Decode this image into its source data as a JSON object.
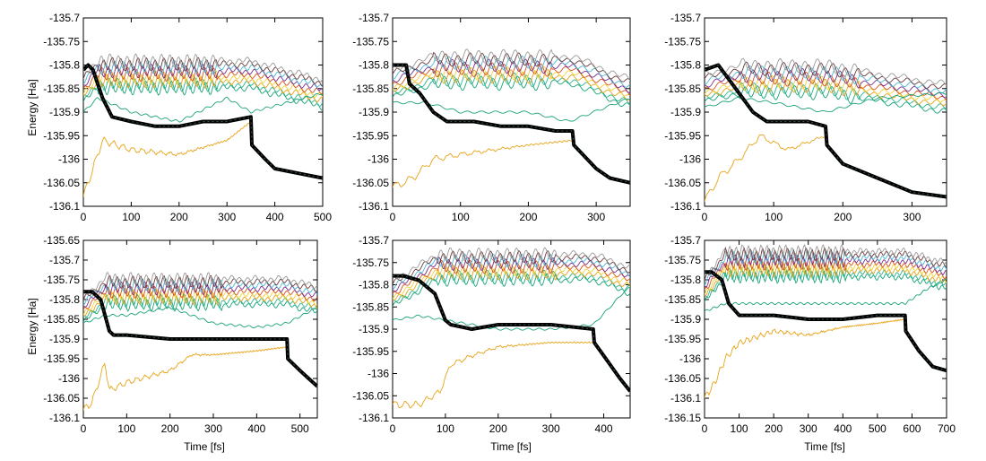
{
  "figure": {
    "ylabel": "Energy [Ha]",
    "xlabel": "Time [fs]"
  },
  "series_colors": [
    "#1aa37a",
    "#2bb58e",
    "#e8a317",
    "#f0d43a",
    "#d9531e",
    "#7b2f8f",
    "#4db8d4",
    "#6b3b3b",
    "#9a9a9a"
  ],
  "chart_data": [
    {
      "type": "line",
      "xlim": [
        0,
        500
      ],
      "ylim": [
        -136.1,
        -135.7
      ],
      "xticks": [
        "0",
        "100",
        "200",
        "300",
        "400",
        "500"
      ],
      "yticks": [
        "-136.1",
        "-136.05",
        "-136",
        "-135.95",
        "-135.9",
        "-135.85",
        "-135.8",
        "-135.75",
        "-135.7"
      ],
      "xlabel": "",
      "ylabel": "Energy [Ha]",
      "grid": false,
      "bundle_y": -135.82,
      "bundle_end_y": -135.86,
      "hop_x": 350,
      "osc_start": 30,
      "lower": {
        "x": [
          0,
          30,
          100,
          200,
          300,
          350,
          500
        ],
        "y": [
          -135.9,
          -135.87,
          -135.9,
          -135.92,
          -135.87,
          -135.9,
          -135.86
        ]
      },
      "orange": {
        "x": [
          0,
          20,
          40,
          100,
          200,
          300,
          350
        ],
        "y": [
          -136.08,
          -136.02,
          -135.96,
          -135.98,
          -135.99,
          -135.96,
          -135.92
        ]
      },
      "black": {
        "x": [
          0,
          10,
          20,
          40,
          60,
          100,
          150,
          200,
          250,
          300,
          350,
          352,
          380,
          400,
          450,
          500
        ],
        "y": [
          -135.81,
          -135.8,
          -135.81,
          -135.87,
          -135.91,
          -135.92,
          -135.93,
          -135.93,
          -135.92,
          -135.92,
          -135.91,
          -135.97,
          -136.0,
          -136.02,
          -136.03,
          -136.04
        ]
      }
    },
    {
      "type": "line",
      "xlim": [
        0,
        350
      ],
      "ylim": [
        -136.1,
        -135.7
      ],
      "xticks": [
        "0",
        "100",
        "200",
        "300"
      ],
      "yticks": [
        "-136.1",
        "-136.05",
        "-136",
        "-135.95",
        "-135.9",
        "-135.85",
        "-135.8",
        "-135.75",
        "-135.7"
      ],
      "xlabel": "",
      "ylabel": "",
      "grid": false,
      "bundle_y": -135.81,
      "bundle_end_y": -135.86,
      "hop_x": 265,
      "osc_start": 60,
      "lower": {
        "x": [
          0,
          50,
          100,
          200,
          260,
          350
        ],
        "y": [
          -135.88,
          -135.88,
          -135.9,
          -135.9,
          -135.92,
          -135.87
        ]
      },
      "orange": {
        "x": [
          0,
          30,
          60,
          100,
          150,
          200,
          265
        ],
        "y": [
          -136.06,
          -136.04,
          -136.0,
          -135.99,
          -135.98,
          -135.97,
          -135.96
        ]
      },
      "black": {
        "x": [
          0,
          20,
          25,
          40,
          60,
          80,
          120,
          160,
          200,
          240,
          265,
          267,
          300,
          320,
          350
        ],
        "y": [
          -135.8,
          -135.8,
          -135.84,
          -135.86,
          -135.9,
          -135.92,
          -135.92,
          -135.93,
          -135.93,
          -135.94,
          -135.94,
          -135.97,
          -136.02,
          -136.04,
          -136.05
        ]
      }
    },
    {
      "type": "line",
      "xlim": [
        0,
        350
      ],
      "ylim": [
        -136.1,
        -135.7
      ],
      "xticks": [
        "0",
        "100",
        "200",
        "300"
      ],
      "yticks": [
        "-136.1",
        "-136.05",
        "-136",
        "-135.95",
        "-135.9",
        "-135.85",
        "-135.8",
        "-135.75",
        "-135.7"
      ],
      "xlabel": "",
      "ylabel": "",
      "grid": false,
      "bundle_y": -135.83,
      "bundle_end_y": -135.87,
      "hop_x": 175,
      "osc_start": 50,
      "lower": {
        "x": [
          0,
          50,
          100,
          175,
          250,
          350
        ],
        "y": [
          -135.89,
          -135.87,
          -135.88,
          -135.9,
          -135.87,
          -135.86
        ]
      },
      "orange": {
        "x": [
          0,
          20,
          50,
          80,
          120,
          175
        ],
        "y": [
          -136.09,
          -136.04,
          -136.0,
          -135.95,
          -135.98,
          -135.95
        ]
      },
      "black": {
        "x": [
          0,
          20,
          30,
          50,
          70,
          90,
          120,
          150,
          175,
          177,
          200,
          250,
          300,
          350
        ],
        "y": [
          -135.81,
          -135.8,
          -135.82,
          -135.86,
          -135.9,
          -135.92,
          -135.92,
          -135.92,
          -135.93,
          -135.97,
          -136.01,
          -136.04,
          -136.07,
          -136.08
        ]
      }
    },
    {
      "type": "line",
      "xlim": [
        0,
        540
      ],
      "ylim": [
        -136.1,
        -135.65
      ],
      "xticks": [
        "0",
        "100",
        "200",
        "300",
        "400",
        "500"
      ],
      "yticks": [
        "-136.1",
        "-136.05",
        "-136",
        "-135.95",
        "-135.9",
        "-135.85",
        "-135.8",
        "-135.75",
        "-135.7",
        "-135.65"
      ],
      "xlabel": "",
      "ylabel": "Energy [Ha]",
      "grid": false,
      "bundle_y": -135.78,
      "bundle_end_y": -135.8,
      "hop_x": 470,
      "osc_start": 50,
      "lower": {
        "x": [
          0,
          50,
          100,
          200,
          300,
          400,
          470,
          540
        ],
        "y": [
          -135.86,
          -135.84,
          -135.84,
          -135.82,
          -135.86,
          -135.87,
          -135.86,
          -135.82
        ]
      },
      "orange": {
        "x": [
          0,
          20,
          50,
          60,
          100,
          200,
          250,
          300,
          400,
          470
        ],
        "y": [
          -136.08,
          -136.06,
          -135.96,
          -136.03,
          -136.01,
          -135.98,
          -135.94,
          -135.94,
          -135.93,
          -135.92
        ]
      },
      "black": {
        "x": [
          0,
          20,
          40,
          60,
          70,
          100,
          200,
          300,
          400,
          470,
          472,
          500,
          520,
          540
        ],
        "y": [
          -135.78,
          -135.78,
          -135.8,
          -135.88,
          -135.89,
          -135.89,
          -135.9,
          -135.9,
          -135.9,
          -135.9,
          -135.95,
          -135.98,
          -136.0,
          -136.02
        ]
      }
    },
    {
      "type": "line",
      "xlim": [
        0,
        450
      ],
      "ylim": [
        -136.1,
        -135.7
      ],
      "xticks": [
        "0",
        "100",
        "200",
        "300",
        "400"
      ],
      "yticks": [
        "-136.1",
        "-136.05",
        "-136",
        "-135.95",
        "-135.9",
        "-135.85",
        "-135.8",
        "-135.75",
        "-135.7"
      ],
      "xlabel": "",
      "ylabel": "",
      "grid": false,
      "bundle_y": -135.76,
      "bundle_end_y": -135.79,
      "hop_x": 380,
      "osc_start": 85,
      "lower": {
        "x": [
          0,
          50,
          100,
          200,
          300,
          380,
          420,
          450
        ],
        "y": [
          -135.88,
          -135.87,
          -135.88,
          -135.9,
          -135.9,
          -135.89,
          -135.84,
          -135.8
        ]
      },
      "orange": {
        "x": [
          0,
          50,
          90,
          110,
          150,
          200,
          300,
          380
        ],
        "y": [
          -136.07,
          -136.07,
          -136.04,
          -135.98,
          -135.96,
          -135.94,
          -135.93,
          -135.93
        ]
      },
      "black": {
        "x": [
          0,
          20,
          50,
          80,
          100,
          110,
          150,
          200,
          300,
          380,
          382,
          400,
          430,
          450
        ],
        "y": [
          -135.78,
          -135.78,
          -135.79,
          -135.82,
          -135.88,
          -135.89,
          -135.9,
          -135.89,
          -135.89,
          -135.9,
          -135.93,
          -135.96,
          -136.01,
          -136.04
        ]
      }
    },
    {
      "type": "line",
      "xlim": [
        0,
        700
      ],
      "ylim": [
        -136.15,
        -135.7
      ],
      "xticks": [
        "0",
        "100",
        "200",
        "300",
        "400",
        "500",
        "600",
        "700"
      ],
      "yticks": [
        "-136.15",
        "-136.1",
        "-136.05",
        "-136",
        "-135.95",
        "-135.9",
        "-135.85",
        "-135.8",
        "-135.75",
        "-135.7"
      ],
      "xlabel": "Time [fs]",
      "ylabel": "",
      "grid": false,
      "bundle_y": -135.76,
      "bundle_end_y": -135.79,
      "hop_x": 580,
      "osc_start": 60,
      "lower": {
        "x": [
          0,
          60,
          100,
          200,
          400,
          580,
          650,
          700
        ],
        "y": [
          -135.88,
          -135.86,
          -135.86,
          -135.86,
          -135.86,
          -135.86,
          -135.82,
          -135.8
        ]
      },
      "orange": {
        "x": [
          0,
          30,
          60,
          100,
          200,
          300,
          400,
          500,
          580
        ],
        "y": [
          -136.1,
          -136.06,
          -136.0,
          -135.96,
          -135.93,
          -135.94,
          -135.92,
          -135.91,
          -135.9
        ]
      },
      "black": {
        "x": [
          0,
          20,
          50,
          70,
          100,
          200,
          300,
          400,
          500,
          580,
          582,
          620,
          660,
          700
        ],
        "y": [
          -135.78,
          -135.78,
          -135.8,
          -135.86,
          -135.89,
          -135.89,
          -135.9,
          -135.9,
          -135.89,
          -135.89,
          -135.93,
          -135.98,
          -136.02,
          -136.03
        ]
      }
    }
  ]
}
